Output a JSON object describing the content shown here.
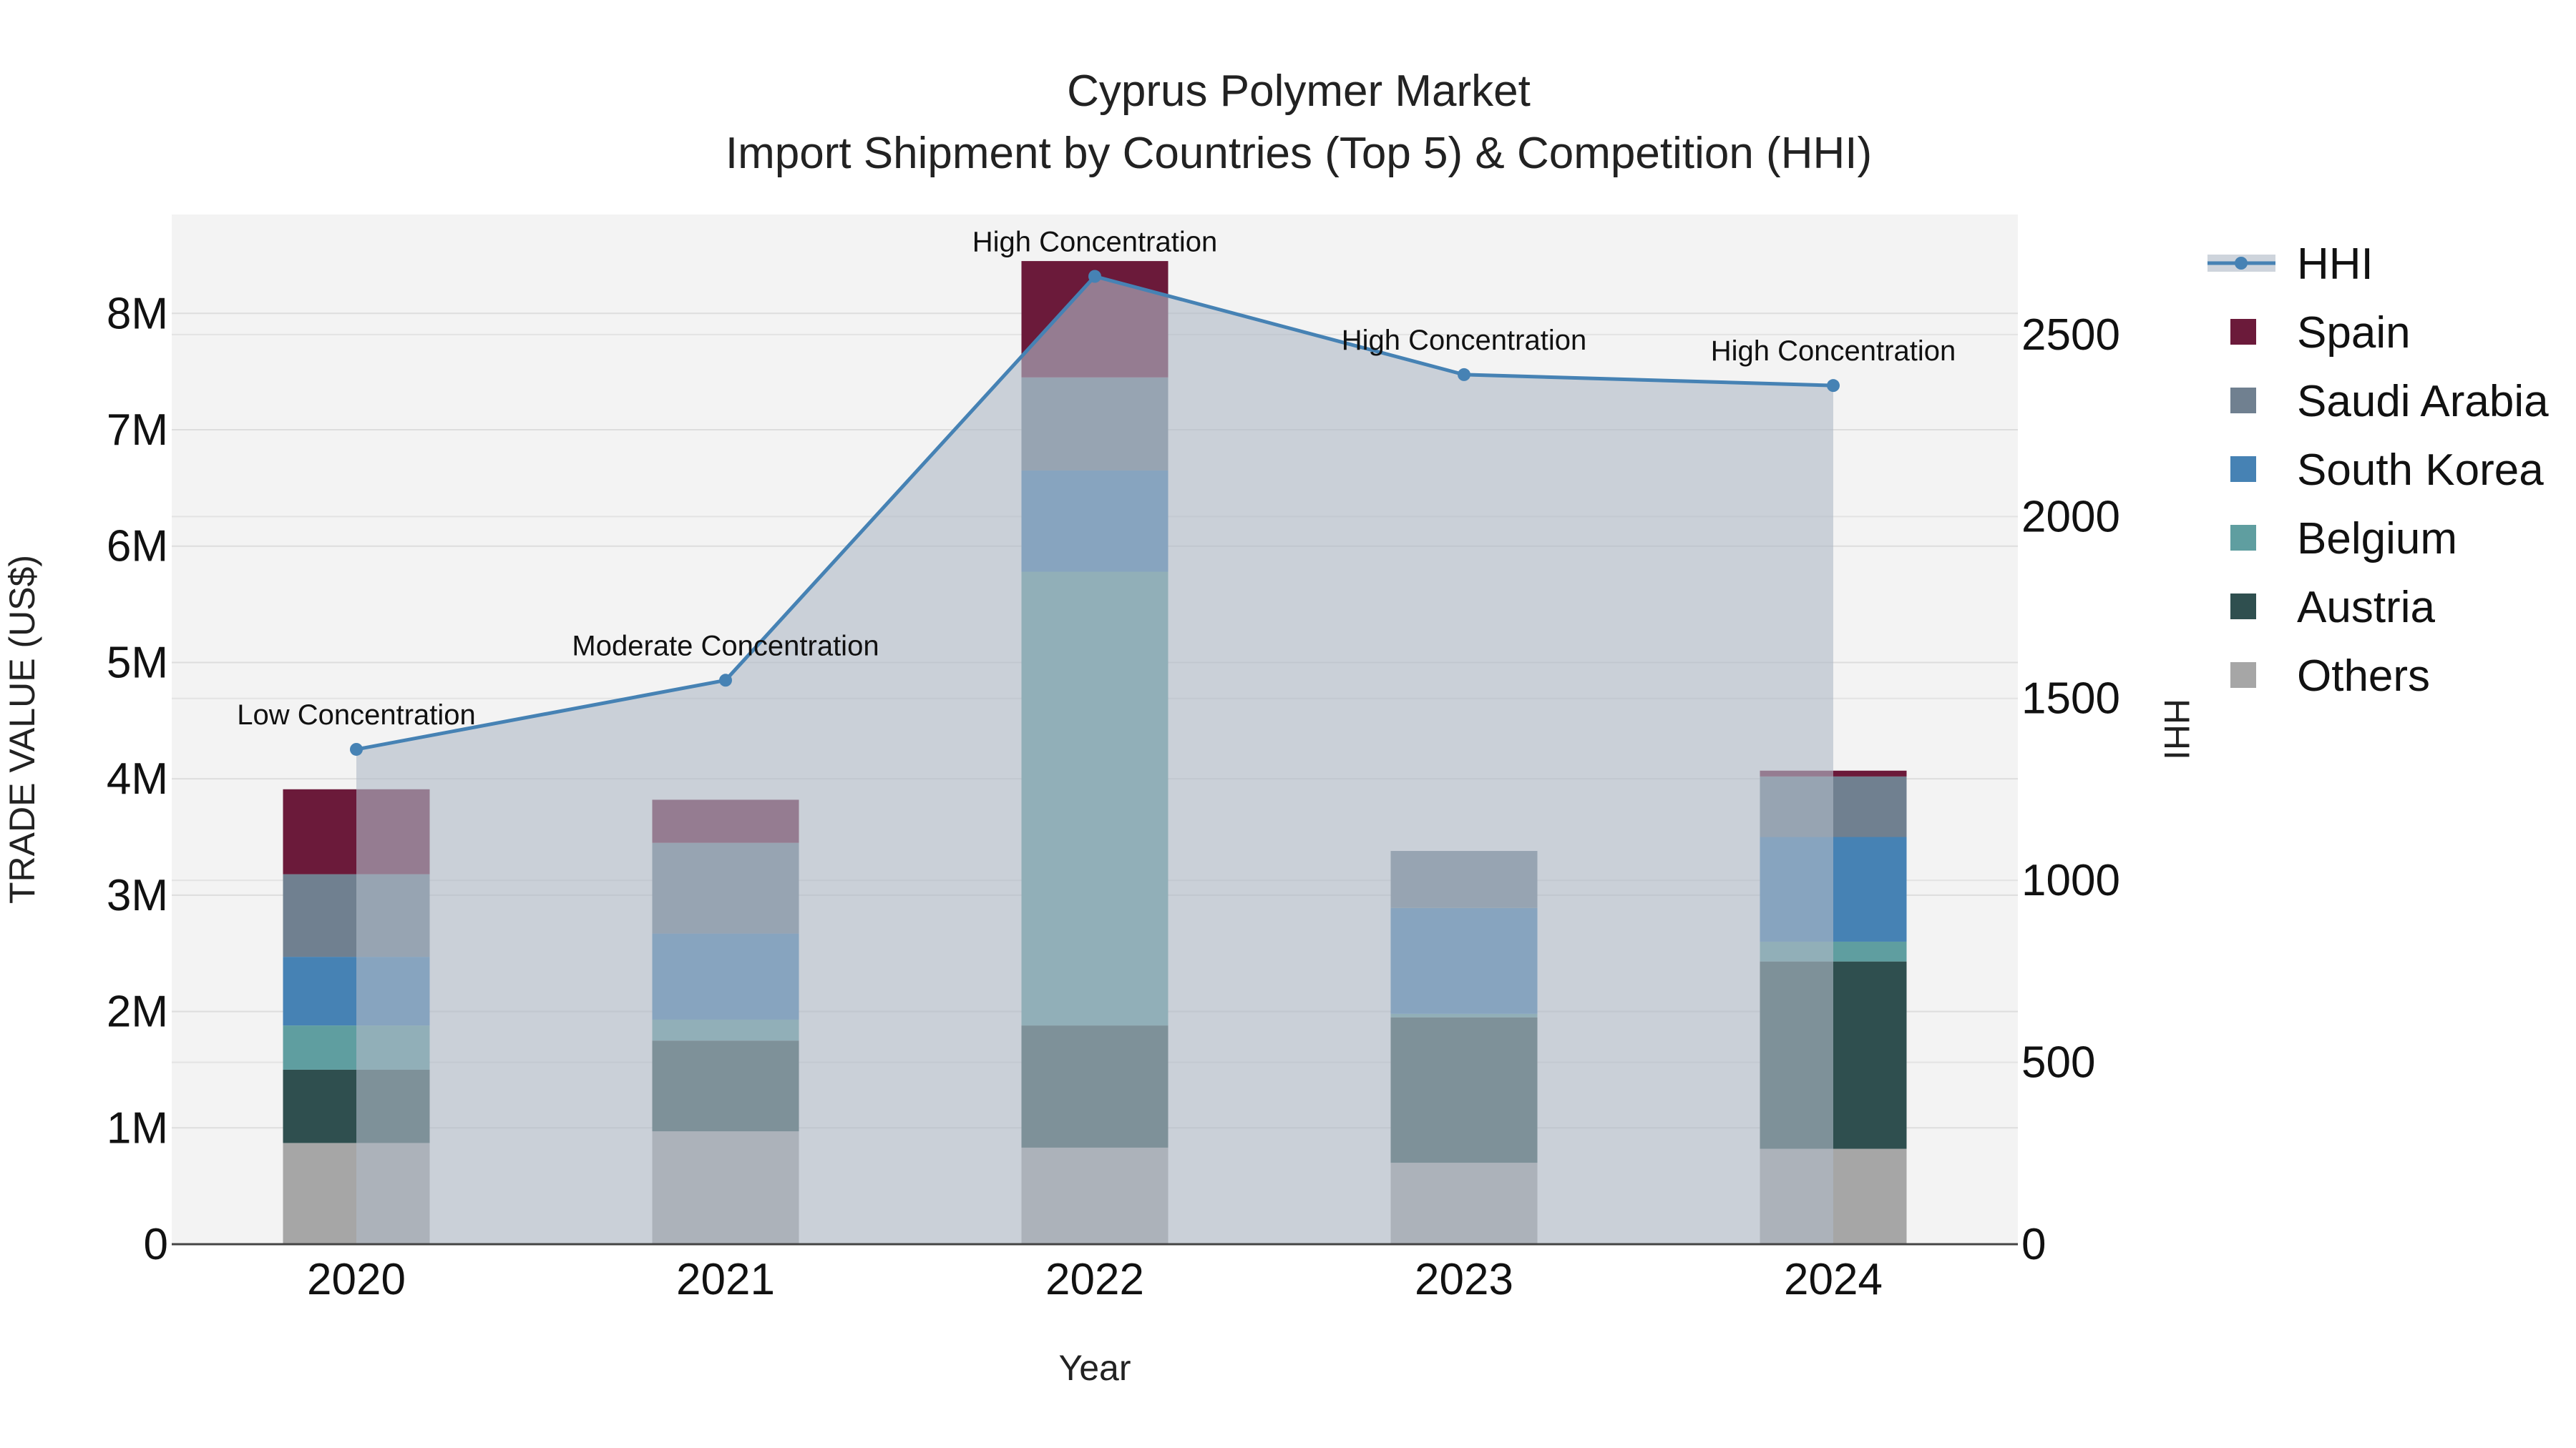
{
  "chart_data": {
    "type": "bar",
    "subtype": "stacked bar with line on secondary axis",
    "title": "Cyprus Polymer Market",
    "subtitle": "Import Shipment by Countries (Top 5) & Competition (HHI)",
    "xlabel": "Year",
    "ylabel": "TRADE VALUE (US$)",
    "y2label": "HHI",
    "categories": [
      "2020",
      "2021",
      "2022",
      "2023",
      "2024"
    ],
    "ylim": [
      0,
      8850000
    ],
    "y2lim": [
      0,
      2830
    ],
    "y_ticks": [
      0,
      1000000,
      2000000,
      3000000,
      4000000,
      5000000,
      6000000,
      7000000,
      8000000
    ],
    "y_tick_labels": [
      "0",
      "1M",
      "2M",
      "3M",
      "4M",
      "5M",
      "6M",
      "7M",
      "8M"
    ],
    "y2_ticks": [
      0,
      500,
      1000,
      1500,
      2000,
      2500
    ],
    "y2_tick_labels": [
      "0",
      "500",
      "1000",
      "1500",
      "2000",
      "2500"
    ],
    "series": [
      {
        "name": "Others",
        "color": "#a6a6a6",
        "values": [
          870000,
          970000,
          830000,
          700000,
          820000
        ]
      },
      {
        "name": "Austria",
        "color": "#2f4f4f",
        "values": [
          630000,
          780000,
          1050000,
          1250000,
          1610000
        ]
      },
      {
        "name": "Belgium",
        "color": "#5f9ea0",
        "values": [
          380000,
          180000,
          3900000,
          30000,
          170000
        ]
      },
      {
        "name": "South Korea",
        "color": "#4682b4",
        "values": [
          590000,
          740000,
          870000,
          910000,
          900000
        ]
      },
      {
        "name": "Saudi Arabia",
        "color": "#708090",
        "values": [
          710000,
          780000,
          800000,
          490000,
          520000
        ]
      },
      {
        "name": "Spain",
        "color": "#6b1a3a",
        "values": [
          730000,
          370000,
          1000000,
          0,
          50000
        ]
      }
    ],
    "hhi": {
      "name": "HHI",
      "color": "#4682b4",
      "values": [
        1360,
        1550,
        2660,
        2390,
        2360
      ],
      "labels": [
        "Low Concentration",
        "Moderate Concentration",
        "High Concentration",
        "High Concentration",
        "High Concentration"
      ]
    },
    "legend": [
      "HHI",
      "Spain",
      "Saudi Arabia",
      "South Korea",
      "Belgium",
      "Austria",
      "Others"
    ],
    "legend_position": "right"
  }
}
